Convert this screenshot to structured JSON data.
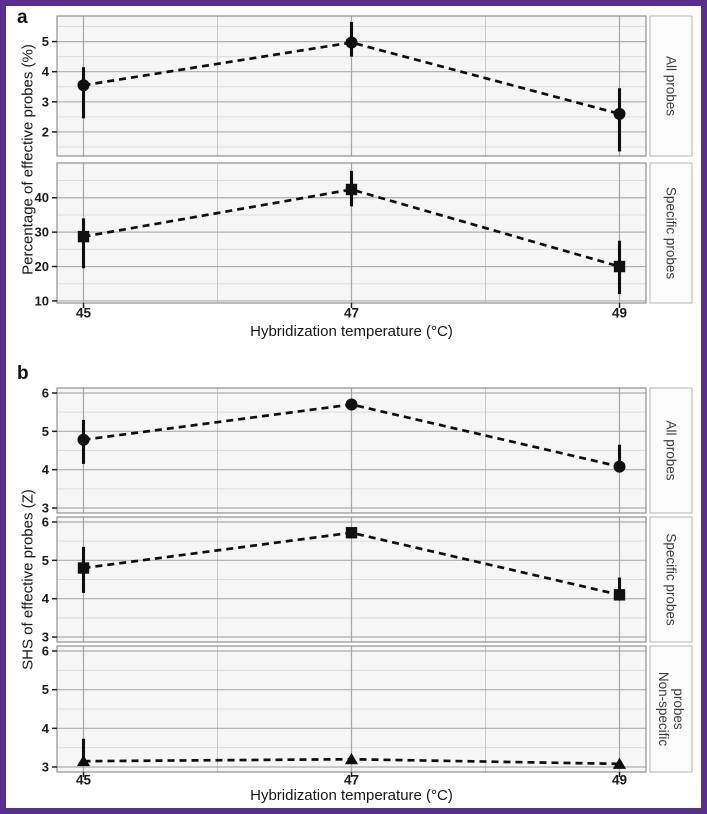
{
  "figure": {
    "border_color": "#582f8e",
    "background": "#ffffff",
    "ink_color": "#0f0f0f",
    "panel_bg": "#f6f6f6",
    "grid_major": "#adadad",
    "grid_minor": "#dcdcdc"
  },
  "chart_data": [
    {
      "type": "line",
      "panel_label": "a",
      "xlabel": "Hybridization temperature (°C)",
      "ylabel": "Percentage of effective probes (%)",
      "x": [
        45,
        47,
        49
      ],
      "x_ticks": [
        "45",
        "47",
        "49"
      ],
      "line_style": "dashed",
      "error_bars": true,
      "grid": true,
      "facet_side": "right",
      "facets": [
        {
          "label": "All probes",
          "marker": "circle",
          "yticks": [
            2,
            3,
            4,
            5
          ],
          "ylim": [
            1.2,
            5.85
          ],
          "points": [
            {
              "x": 45,
              "y": 3.55,
              "lo": 2.45,
              "hi": 4.15
            },
            {
              "x": 47,
              "y": 4.97,
              "lo": 4.5,
              "hi": 5.65
            },
            {
              "x": 49,
              "y": 2.6,
              "lo": 1.35,
              "hi": 3.45
            }
          ]
        },
        {
          "label": "Specific probes",
          "marker": "square",
          "yticks": [
            10,
            20,
            30,
            40
          ],
          "ylim": [
            9.4,
            50.1
          ],
          "points": [
            {
              "x": 45,
              "y": 28.7,
              "lo": 19.5,
              "hi": 34.0
            },
            {
              "x": 47,
              "y": 42.4,
              "lo": 37.5,
              "hi": 47.8
            },
            {
              "x": 49,
              "y": 20.0,
              "lo": 12.0,
              "hi": 27.5
            }
          ]
        }
      ]
    },
    {
      "type": "line",
      "panel_label": "b",
      "xlabel": "Hybridization temperature (°C)",
      "ylabel": "SHS of effective probes (Z)",
      "x": [
        45,
        47,
        49
      ],
      "x_ticks": [
        "45",
        "47",
        "49"
      ],
      "line_style": "dashed",
      "error_bars": true,
      "grid": true,
      "facet_side": "right",
      "facets": [
        {
          "label": "All probes",
          "marker": "circle",
          "yticks": [
            3,
            4,
            5,
            6
          ],
          "ylim": [
            2.87,
            6.13
          ],
          "points": [
            {
              "x": 45,
              "y": 4.78,
              "lo": 4.15,
              "hi": 5.3
            },
            {
              "x": 47,
              "y": 5.7,
              "lo": 5.6,
              "hi": 5.78
            },
            {
              "x": 49,
              "y": 4.08,
              "lo": 3.95,
              "hi": 4.65
            }
          ]
        },
        {
          "label": "Specific probes",
          "marker": "square",
          "yticks": [
            3,
            4,
            5,
            6
          ],
          "ylim": [
            2.87,
            6.13
          ],
          "points": [
            {
              "x": 45,
              "y": 4.8,
              "lo": 4.15,
              "hi": 5.35
            },
            {
              "x": 47,
              "y": 5.72,
              "lo": 5.65,
              "hi": 5.79
            },
            {
              "x": 49,
              "y": 4.1,
              "lo": 3.95,
              "hi": 4.55
            }
          ]
        },
        {
          "label": "Non-specific probes",
          "marker": "triangle",
          "yticks": [
            3,
            4,
            5,
            6
          ],
          "ylim": [
            2.87,
            6.13
          ],
          "points": [
            {
              "x": 45,
              "y": 3.15,
              "lo": 3.08,
              "hi": 3.73
            },
            {
              "x": 47,
              "y": 3.2,
              "lo": 3.15,
              "hi": 3.25
            },
            {
              "x": 49,
              "y": 3.08,
              "lo": 3.03,
              "hi": 3.13
            }
          ]
        }
      ]
    }
  ]
}
